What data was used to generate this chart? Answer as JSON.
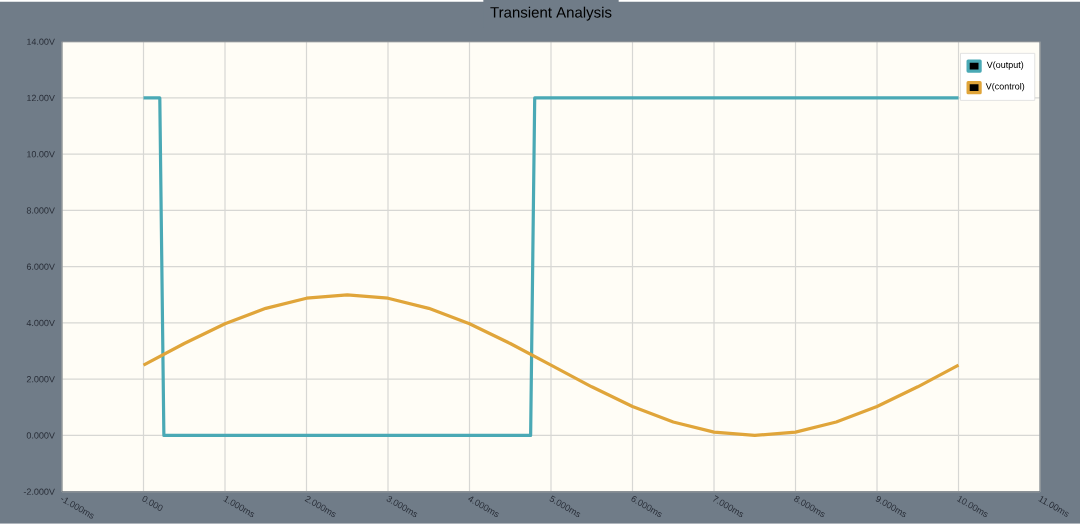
{
  "chart_data": {
    "type": "line",
    "title": "Transient Analysis",
    "x": [
      0,
      0.5,
      1,
      1.5,
      2,
      2.5,
      3,
      3.5,
      4,
      4.5,
      5,
      5.5,
      6,
      6.5,
      7,
      7.5,
      8,
      8.5,
      9,
      9.5,
      10
    ],
    "series": [
      {
        "name": "V(output)",
        "color": "#4aa9b5",
        "x": [
          0,
          0.2,
          0.25,
          4.75,
          4.8,
          10
        ],
        "values": [
          12,
          12,
          0,
          0,
          12,
          12
        ]
      },
      {
        "name": "V(control)",
        "color": "#e0a53a",
        "values": [
          2.5,
          3.27,
          3.97,
          4.52,
          4.88,
          5,
          4.88,
          4.52,
          3.97,
          3.27,
          2.5,
          1.73,
          1.03,
          0.48,
          0.12,
          0,
          0.12,
          0.48,
          1.03,
          1.73,
          2.5
        ]
      }
    ],
    "xlim": [
      -1,
      11
    ],
    "xticks": [
      {
        "value": -1,
        "label": "-1.000ms"
      },
      {
        "value": 0,
        "label": "0.000"
      },
      {
        "value": 1,
        "label": "1.000ms"
      },
      {
        "value": 2,
        "label": "2.000ms"
      },
      {
        "value": 3,
        "label": "3.000ms"
      },
      {
        "value": 4,
        "label": "4.000ms"
      },
      {
        "value": 5,
        "label": "5.000ms"
      },
      {
        "value": 6,
        "label": "6.000ms"
      },
      {
        "value": 7,
        "label": "7.000ms"
      },
      {
        "value": 8,
        "label": "8.000ms"
      },
      {
        "value": 9,
        "label": "9.000ms"
      },
      {
        "value": 10,
        "label": "10.00ms"
      },
      {
        "value": 11,
        "label": "11.00ms"
      }
    ],
    "ylim": [
      -2,
      14
    ],
    "yticks": [
      {
        "value": -2,
        "label": "-2.000V"
      },
      {
        "value": 0,
        "label": "0.000V"
      },
      {
        "value": 2,
        "label": "2.000V"
      },
      {
        "value": 4,
        "label": "4.000V"
      },
      {
        "value": 6,
        "label": "6.000V"
      },
      {
        "value": 8,
        "label": "8.000V"
      },
      {
        "value": 10,
        "label": "10.00V"
      },
      {
        "value": 12,
        "label": "12.00V"
      },
      {
        "value": 14,
        "label": "14.00V"
      }
    ],
    "grid": true,
    "legend": "top right",
    "line_style": "solid"
  }
}
